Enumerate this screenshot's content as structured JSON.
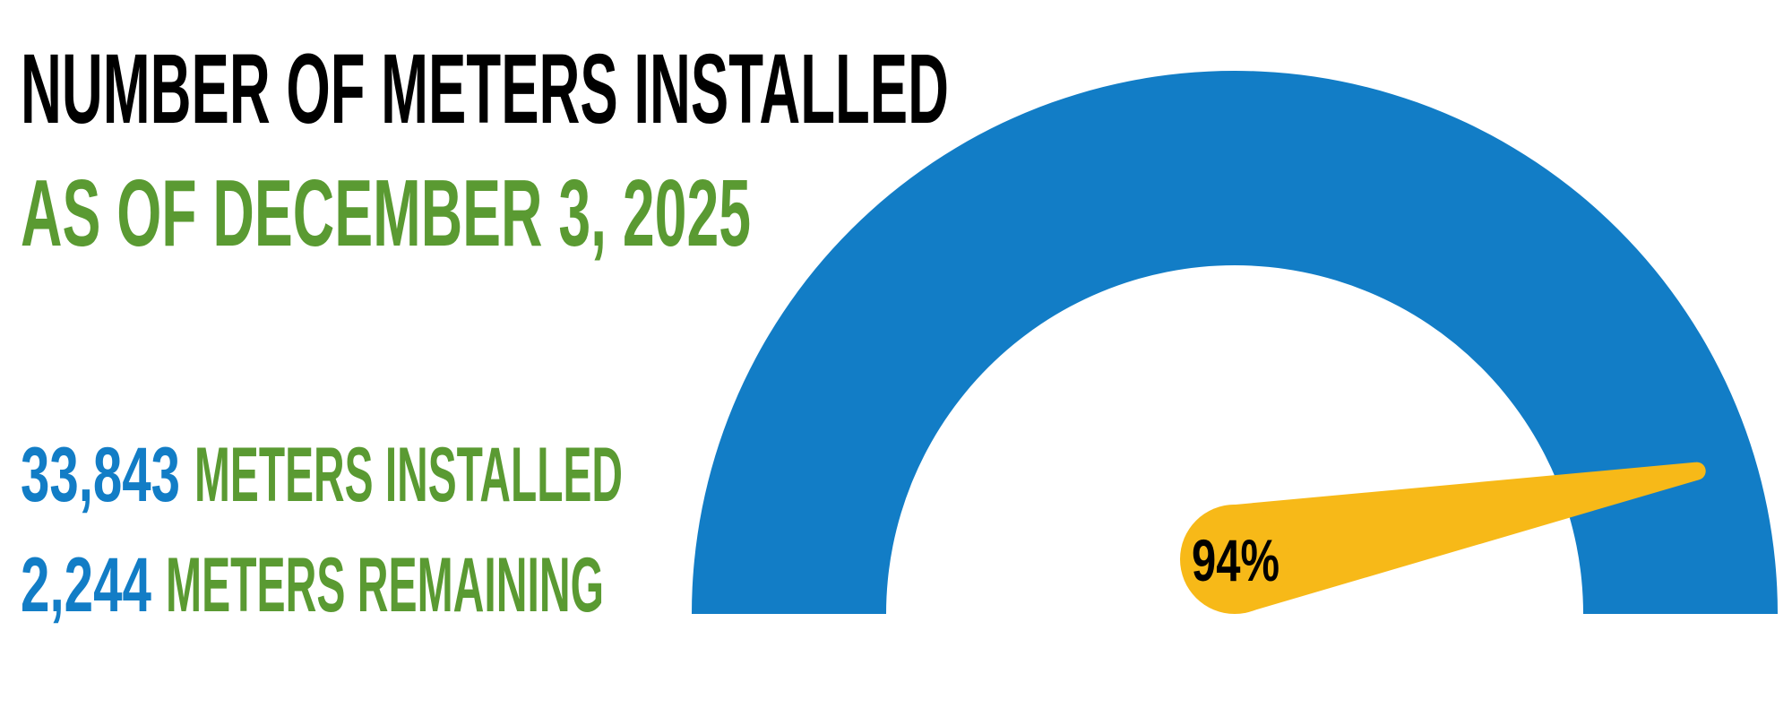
{
  "chart_data": {
    "type": "gauge",
    "title": "NUMBER OF METERS INSTALLED",
    "subtitle": "AS OF DECEMBER 3, 2025",
    "value": 94,
    "value_label": "94%",
    "range": [
      0,
      100
    ],
    "color": "#127dc6",
    "needle_color": "#f7b918",
    "stats": [
      {
        "number": "33,843",
        "label": "METERS INSTALLED"
      },
      {
        "number": "2,244",
        "label": "METERS REMAINING"
      }
    ]
  }
}
